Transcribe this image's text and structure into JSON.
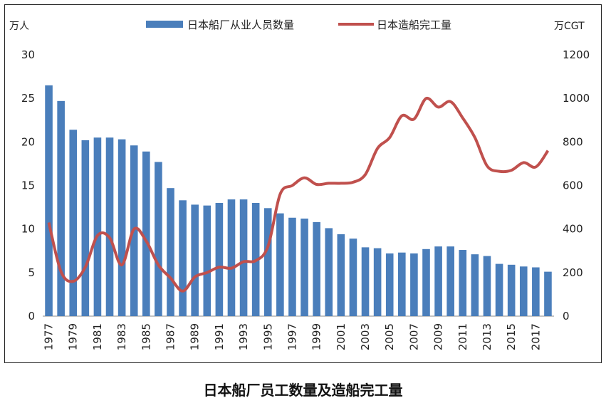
{
  "caption": "日本船厂员工数量及造船完工量",
  "chart_data": {
    "type": "bar",
    "title": "",
    "y_left_unit": "万人",
    "y_right_unit": "万CGT",
    "y_left_lim": [
      0,
      30
    ],
    "y_left_ticks": [
      0,
      5,
      10,
      15,
      20,
      25,
      30
    ],
    "y_right_lim": [
      0,
      1200
    ],
    "y_right_ticks": [
      0,
      200,
      400,
      600,
      800,
      1000,
      1200
    ],
    "x_years": [
      1977,
      1978,
      1979,
      1980,
      1981,
      1982,
      1983,
      1984,
      1985,
      1986,
      1987,
      1988,
      1989,
      1990,
      1991,
      1992,
      1993,
      1994,
      1995,
      1996,
      1997,
      1998,
      1999,
      2000,
      2001,
      2002,
      2003,
      2004,
      2005,
      2006,
      2007,
      2008,
      2009,
      2010,
      2011,
      2012,
      2013,
      2014,
      2015,
      2016,
      2017,
      2018
    ],
    "x_tick_labels": [
      "1977",
      "1979",
      "1981",
      "1983",
      "1985",
      "1987",
      "1989",
      "1991",
      "1993",
      "1995",
      "1997",
      "1999",
      "2001",
      "2003",
      "2005",
      "2007",
      "2009",
      "2011",
      "2013",
      "2015",
      "2017"
    ],
    "series": [
      {
        "name": "日本船厂从业人员数量",
        "kind": "bar",
        "axis": "left",
        "color": "#4a7ebb",
        "values": [
          26.5,
          24.7,
          21.4,
          20.2,
          20.5,
          20.5,
          20.3,
          19.6,
          18.9,
          17.7,
          14.7,
          13.3,
          12.8,
          12.7,
          13.0,
          13.4,
          13.4,
          13.0,
          12.4,
          11.8,
          11.3,
          11.2,
          10.8,
          10.1,
          9.4,
          8.9,
          7.9,
          7.8,
          7.2,
          7.3,
          7.2,
          7.7,
          8.0,
          8.0,
          7.6,
          7.1,
          6.9,
          6.0,
          5.9,
          5.7,
          5.6,
          5.1
        ]
      },
      {
        "name": "日本造船完工量",
        "kind": "line",
        "axis": "right",
        "color": "#c0504d",
        "values": [
          430,
          205,
          160,
          225,
          370,
          360,
          235,
          400,
          345,
          235,
          175,
          115,
          180,
          200,
          225,
          220,
          250,
          255,
          320,
          560,
          600,
          635,
          605,
          610,
          610,
          615,
          650,
          770,
          820,
          920,
          905,
          1000,
          960,
          985,
          910,
          820,
          690,
          665,
          670,
          705,
          685,
          760
        ]
      }
    ]
  }
}
